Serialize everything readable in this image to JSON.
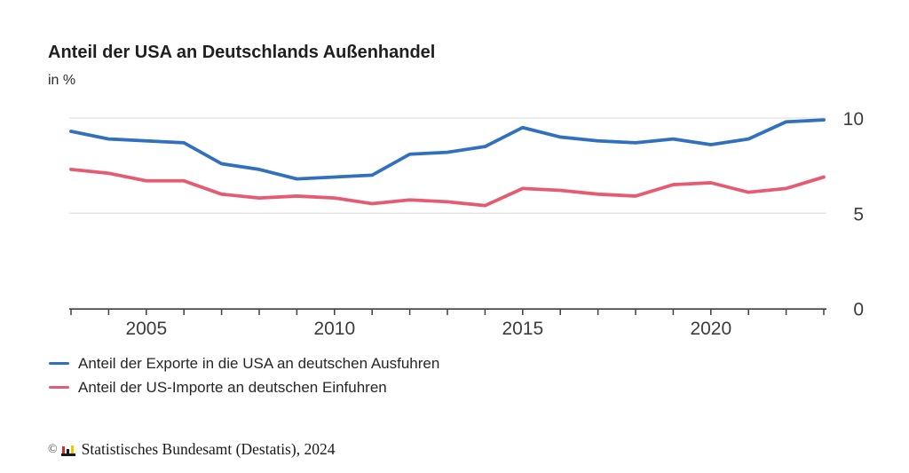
{
  "header": {
    "title": "Anteil der USA an Deutschlands Außenhandel",
    "subtitle": "in %"
  },
  "chart_data": {
    "type": "line",
    "title": "Anteil der USA an Deutschlands Außenhandel",
    "unit_label": "in %",
    "x": [
      2003,
      2004,
      2005,
      2006,
      2007,
      2008,
      2009,
      2010,
      2011,
      2012,
      2013,
      2014,
      2015,
      2016,
      2017,
      2018,
      2019,
      2020,
      2021,
      2022,
      2023
    ],
    "series": [
      {
        "name": "Anteil der Exporte in die USA an deutschen Ausfuhren",
        "color": "#3170bd",
        "values": [
          9.3,
          8.9,
          8.8,
          8.7,
          7.6,
          7.3,
          6.8,
          6.9,
          7.0,
          8.1,
          8.2,
          8.5,
          9.5,
          9.0,
          8.8,
          8.7,
          8.9,
          8.6,
          8.9,
          9.8,
          9.9
        ]
      },
      {
        "name": "Anteil der US-Importe an deutschen Einfuhren",
        "color": "#e55c72",
        "values": [
          7.3,
          7.1,
          6.7,
          6.7,
          6.0,
          5.8,
          5.9,
          5.8,
          5.5,
          5.7,
          5.6,
          5.4,
          6.3,
          6.2,
          6.0,
          5.9,
          6.5,
          6.6,
          6.1,
          6.3,
          6.9
        ]
      }
    ],
    "xticks_labeled": [
      2005,
      2010,
      2015,
      2020
    ],
    "yticks": [
      0,
      5,
      10
    ],
    "ylim": [
      0,
      10
    ],
    "grid": "horizontal",
    "legend_position": "bottom-left",
    "axis_color": "#3d3d3d",
    "grid_color": "#e2e2e2",
    "tick_label_color": "#3c3c3c"
  },
  "footer": {
    "copyright": "©",
    "icon": "destatis-bars-icon",
    "icon_colors": {
      "red": "#d42d2a",
      "black": "#1a1a1a",
      "gold": "#f5c400"
    },
    "source": "Statistisches Bundesamt (Destatis), 2024"
  }
}
